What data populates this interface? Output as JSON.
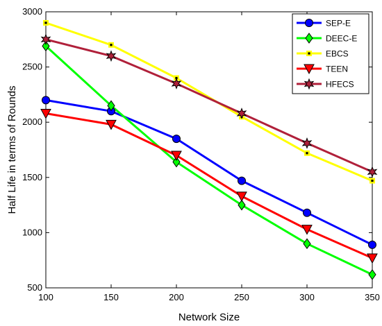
{
  "chart_data": {
    "type": "line",
    "title": "",
    "xlabel": "Network Size",
    "ylabel": "Half Life in terms of Rounds",
    "x": [
      100,
      150,
      200,
      250,
      300,
      350
    ],
    "xlim": [
      100,
      350
    ],
    "ylim": [
      500,
      3000
    ],
    "xticks": [
      "100",
      "150",
      "200",
      "250",
      "300",
      "350"
    ],
    "yticks": [
      "500",
      "1000",
      "1500",
      "2000",
      "2500",
      "3000"
    ],
    "grid": false,
    "legend_position": "top-right",
    "series": [
      {
        "name": "SEP-E",
        "values": [
          2200,
          2100,
          1850,
          1470,
          1180,
          890
        ],
        "color": "#0000ff",
        "marker": "circle"
      },
      {
        "name": "DEEC-E",
        "values": [
          2690,
          2150,
          1640,
          1250,
          900,
          620
        ],
        "color": "#00ff00",
        "marker": "diamond"
      },
      {
        "name": "EBCS",
        "values": [
          2900,
          2700,
          2400,
          2050,
          1720,
          1470
        ],
        "color": "#ffff00",
        "marker": "square"
      },
      {
        "name": "TEEN",
        "values": [
          2080,
          1980,
          1700,
          1330,
          1030,
          770
        ],
        "color": "#ff0000",
        "marker": "triangle-down"
      },
      {
        "name": "HFECS",
        "values": [
          2750,
          2600,
          2350,
          2080,
          1810,
          1550
        ],
        "color": "#b0203a",
        "marker": "hexagram"
      }
    ]
  }
}
